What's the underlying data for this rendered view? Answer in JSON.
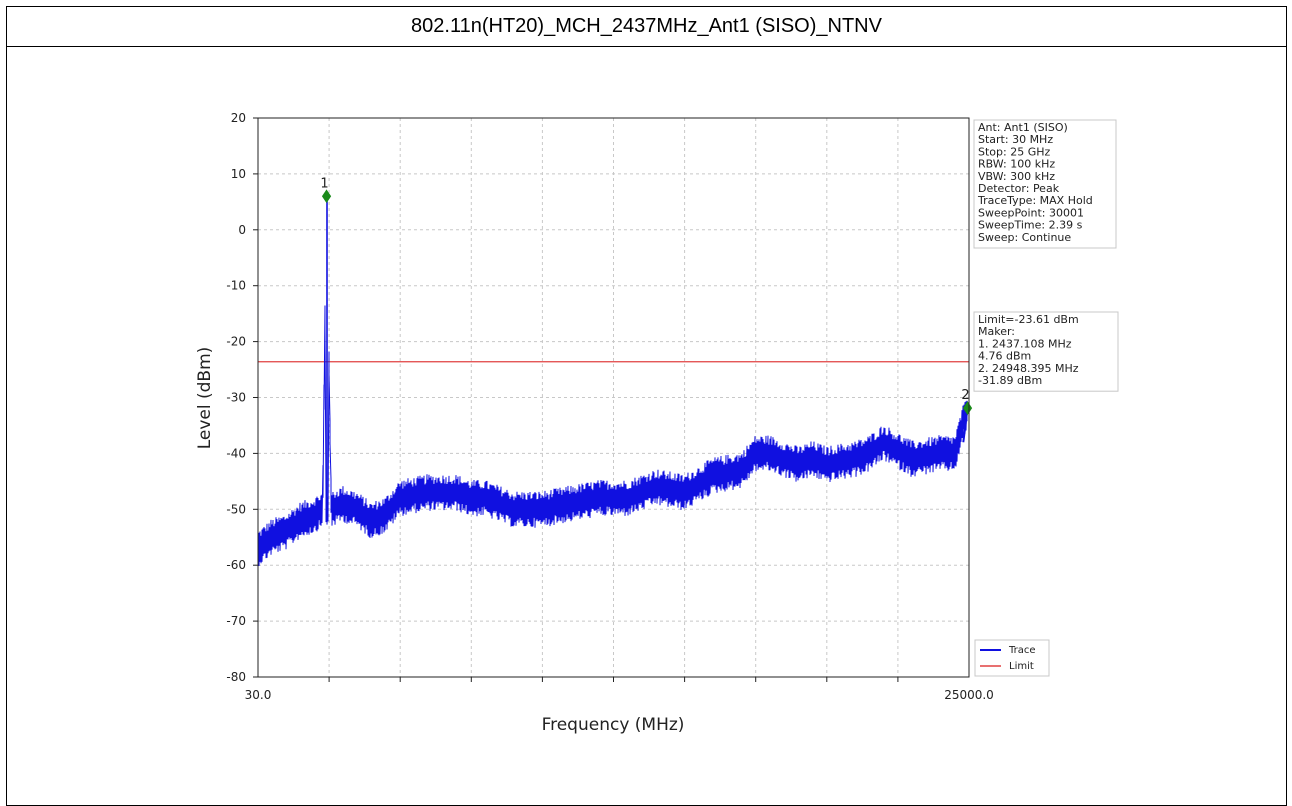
{
  "page": {
    "title": "802.11n(HT20)_MCH_2437MHz_Ant1 (SISO)_NTNV"
  },
  "chart_data": {
    "type": "line",
    "title": "802.11n(HT20)_MCH_2437MHz_Ant1 (SISO)_NTNV",
    "xlabel": "Frequency (MHz)",
    "ylabel": "Level (dBm)",
    "xlim": [
      30.0,
      25000.0
    ],
    "ylim": [
      -80,
      20
    ],
    "x_tick_labels": [
      "30.0",
      "25000.0"
    ],
    "y_ticks": [
      20,
      10,
      0,
      -10,
      -20,
      -30,
      -40,
      -50,
      -60,
      -70,
      -80
    ],
    "grid": true,
    "colors": {
      "trace": "#1010e0",
      "limit": "#e04040",
      "marker": "#1a8a1a"
    },
    "series": [
      {
        "name": "Trace",
        "x": [
          30,
          500,
          1000,
          1500,
          2000,
          2300,
          2437,
          2600,
          3000,
          3500,
          4000,
          4500,
          5000,
          6000,
          7000,
          7500,
          8000,
          9000,
          10000,
          11000,
          12000,
          13000,
          14000,
          15000,
          16000,
          17000,
          17500,
          18000,
          19000,
          19500,
          20000,
          21000,
          21500,
          22000,
          23000,
          24000,
          24500,
          24948
        ],
        "y": [
          -57,
          -55,
          -54,
          -52,
          -51,
          -50,
          6,
          -50,
          -49,
          -50,
          -52,
          -51,
          -48,
          -47,
          -47,
          -48,
          -48,
          -50,
          -50,
          -49,
          -48,
          -48,
          -46,
          -47,
          -44,
          -43,
          -40,
          -40,
          -42,
          -41,
          -42,
          -41,
          -40,
          -38,
          -41,
          -40,
          -40,
          -31.89
        ]
      },
      {
        "name": "Limit",
        "x": [
          30,
          25000
        ],
        "y": [
          -23.61,
          -23.61
        ]
      }
    ],
    "markers": [
      {
        "label": "1",
        "x": 2437.108,
        "y": 4.76
      },
      {
        "label": "2",
        "x": 24948.395,
        "y": -31.89
      }
    ],
    "info_box": [
      "Ant: Ant1 (SISO)",
      "Start: 30 MHz",
      "Stop: 25 GHz",
      "RBW: 100 kHz",
      "VBW: 300 kHz",
      "Detector: Peak",
      "TraceType: MAX Hold",
      "SweepPoint: 30001",
      "SweepTime: 2.39 s",
      "Sweep: Continue"
    ],
    "marker_box": [
      "Limit=-23.61 dBm",
      "Maker:",
      "1. 2437.108 MHz",
      "    4.76 dBm",
      "2. 24948.395 MHz",
      "    -31.89 dBm"
    ],
    "legend": {
      "placement": "bottom-right",
      "entries": [
        "Trace",
        "Limit"
      ]
    }
  }
}
